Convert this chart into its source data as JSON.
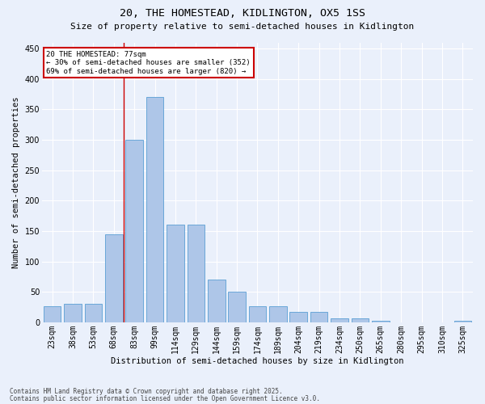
{
  "title1": "20, THE HOMESTEAD, KIDLINGTON, OX5 1SS",
  "title2": "Size of property relative to semi-detached houses in Kidlington",
  "xlabel": "Distribution of semi-detached houses by size in Kidlington",
  "ylabel": "Number of semi-detached properties",
  "categories": [
    "23sqm",
    "38sqm",
    "53sqm",
    "68sqm",
    "83sqm",
    "99sqm",
    "114sqm",
    "129sqm",
    "144sqm",
    "159sqm",
    "174sqm",
    "189sqm",
    "204sqm",
    "219sqm",
    "234sqm",
    "250sqm",
    "265sqm",
    "280sqm",
    "295sqm",
    "310sqm",
    "325sqm"
  ],
  "values": [
    27,
    30,
    30,
    145,
    300,
    370,
    160,
    160,
    70,
    50,
    26,
    26,
    17,
    17,
    6,
    6,
    3,
    0,
    0,
    0,
    2
  ],
  "bar_color": "#aec6e8",
  "bar_edge_color": "#5a9fd4",
  "vline_x_index": 3.5,
  "annotation_text": "20 THE HOMESTEAD: 77sqm\n← 30% of semi-detached houses are smaller (352)\n69% of semi-detached houses are larger (820) →",
  "ylim": [
    0,
    460
  ],
  "yticks": [
    0,
    50,
    100,
    150,
    200,
    250,
    300,
    350,
    400,
    450
  ],
  "footer1": "Contains HM Land Registry data © Crown copyright and database right 2025.",
  "footer2": "Contains public sector information licensed under the Open Government Licence v3.0.",
  "bg_color": "#eaf0fb",
  "grid_color": "#ffffff",
  "annotation_box_color": "#ffffff",
  "annotation_box_edge": "#cc0000",
  "vline_color": "#cc0000",
  "title1_fontsize": 9.5,
  "title2_fontsize": 8,
  "axis_fontsize": 7,
  "ylabel_fontsize": 7.5,
  "xlabel_fontsize": 7.5,
  "ann_fontsize": 6.5,
  "footer_fontsize": 5.5
}
